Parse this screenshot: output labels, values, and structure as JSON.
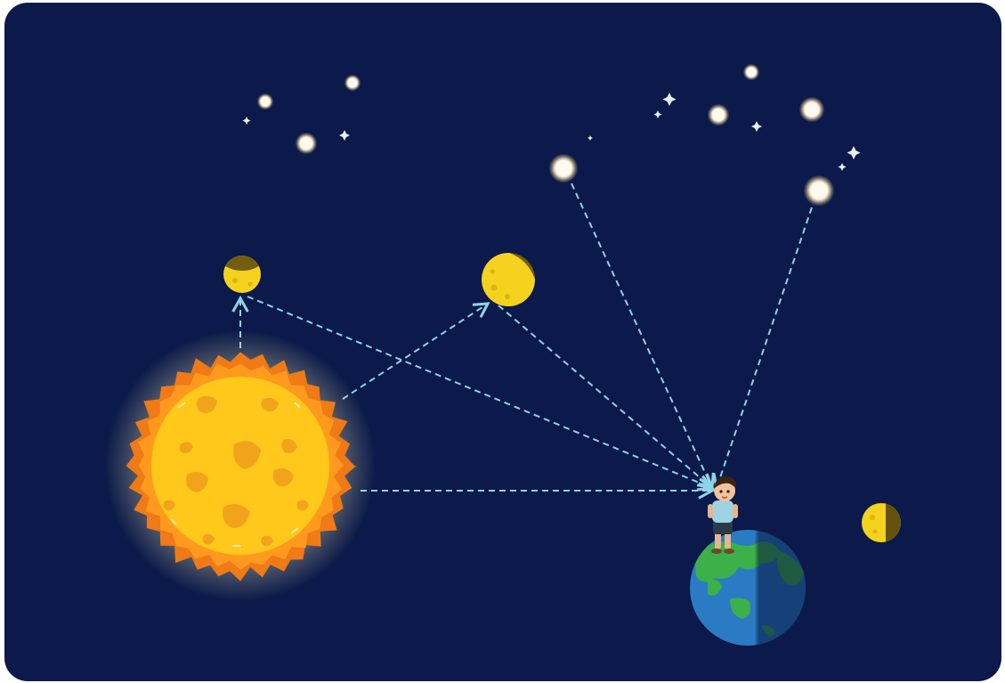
{
  "scene": {
    "background_color": "#0b1a4a",
    "frame_color": "#ffffff",
    "ray_color": "#8fd3e8",
    "sun": {
      "icon": "sun-icon",
      "colors": [
        "#ffd21a",
        "#ff9a1f",
        "#f07a16"
      ]
    },
    "earth": {
      "icon": "earth-icon",
      "ocean": "#2a7bc4",
      "land": "#3db04a"
    },
    "observer": {
      "icon": "child-observer-icon"
    },
    "planets": [
      {
        "icon": "planet-icon",
        "phase": "gibbous-top-shaded"
      },
      {
        "icon": "planet-icon",
        "phase": "gibbous-right-shaded"
      },
      {
        "icon": "moon-icon",
        "phase": "first-quarter"
      }
    ],
    "bright_stars": 8,
    "small_stars": 9
  }
}
